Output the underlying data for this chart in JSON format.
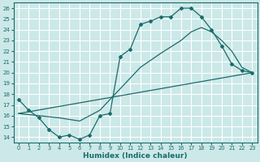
{
  "xlabel": "Humidex (Indice chaleur)",
  "xlim": [
    -0.5,
    23.5
  ],
  "ylim": [
    13.5,
    26.5
  ],
  "yticks": [
    14,
    15,
    16,
    17,
    18,
    19,
    20,
    21,
    22,
    23,
    24,
    25,
    26
  ],
  "xticks": [
    0,
    1,
    2,
    3,
    4,
    5,
    6,
    7,
    8,
    9,
    10,
    11,
    12,
    13,
    14,
    15,
    16,
    17,
    18,
    19,
    20,
    21,
    22,
    23
  ],
  "bg_color": "#cce8e8",
  "line_color": "#1a6b6b",
  "grid_color": "#ffffff",
  "line1_x": [
    0,
    1,
    2,
    3,
    4,
    5,
    6,
    7,
    8,
    9,
    10,
    11,
    12,
    13,
    14,
    15,
    16,
    17,
    18,
    19,
    20,
    21,
    22,
    23
  ],
  "line1_y": [
    17.5,
    16.5,
    15.8,
    14.7,
    14.0,
    14.2,
    13.8,
    14.2,
    16.0,
    16.2,
    21.5,
    22.2,
    24.5,
    24.8,
    25.2,
    25.2,
    26.0,
    26.0,
    25.2,
    24.0,
    22.5,
    20.8,
    20.2,
    20.0
  ],
  "line2_x": [
    0,
    23
  ],
  "line2_y": [
    16.2,
    20.0
  ],
  "line3_x": [
    0,
    2,
    4,
    6,
    8,
    10,
    12,
    14,
    16,
    17,
    18,
    19,
    20,
    21,
    22,
    23
  ],
  "line3_y": [
    16.2,
    16.0,
    15.8,
    15.5,
    16.5,
    18.5,
    20.5,
    21.8,
    23.0,
    23.8,
    24.2,
    23.8,
    23.0,
    22.0,
    20.5,
    20.0
  ]
}
